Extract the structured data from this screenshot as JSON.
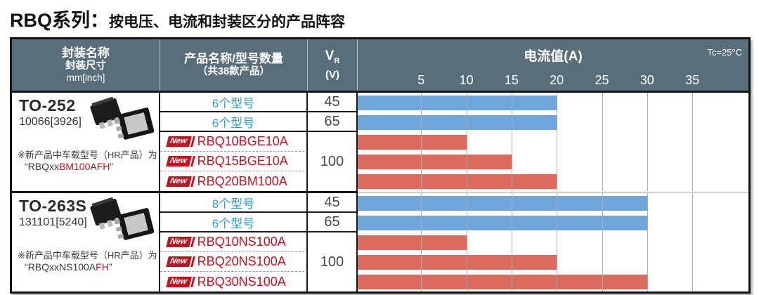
{
  "title": {
    "series": "RBQ系列：",
    "subtitle": "按电压、电流和封装区分的产品阵容"
  },
  "header": {
    "package_col": {
      "line1": "封装名称",
      "line2": "封装尺寸",
      "line3": "mm[inch]"
    },
    "product_col": {
      "line1": "产品名称/型号数量",
      "line2": "（共38款产品）"
    },
    "vr_col": {
      "symbol": "V",
      "sub": "R",
      "unit": "(V)"
    }
  },
  "new_badge_label": "New",
  "chart_data": {
    "type": "bar",
    "orientation": "horizontal",
    "xlabel": "电流值(A)",
    "condition": "Tc=25°C",
    "ticks": [
      5,
      10,
      15,
      20,
      25,
      30,
      35
    ],
    "xlim": [
      0,
      37
    ],
    "grid": true,
    "bar_colors": {
      "existing": "#6FA6DB",
      "new_product": "#DD6A5E"
    },
    "sections": [
      {
        "package": "TO-252",
        "package_size": "10066[3926]",
        "note_line1": "※新产品中车载型号（HR产品）为",
        "note_line2_parts": [
          {
            "text": "“RBQxx",
            "red": false
          },
          {
            "text": "BM100",
            "red": true
          },
          {
            "text": "A",
            "red": false
          },
          {
            "text": "FH",
            "red": true
          },
          {
            "text": "”",
            "red": false
          }
        ],
        "rows": [
          {
            "label": "6个型号",
            "is_new": false,
            "vr": "45",
            "vr_span": 1,
            "current_a": 20
          },
          {
            "label": "6个型号",
            "is_new": false,
            "vr": "65",
            "vr_span": 1,
            "current_a": 20
          },
          {
            "label": "RBQ10BGE10A",
            "is_new": true,
            "vr": "100",
            "vr_span": 3,
            "current_a": 10
          },
          {
            "label": "RBQ15BGE10A",
            "is_new": true,
            "current_a": 15
          },
          {
            "label": "RBQ20BM100A",
            "is_new": true,
            "current_a": 20
          }
        ]
      },
      {
        "package": "TO-263S",
        "package_size": "131101[5240]",
        "note_line1": "※新产品中车载型号（HR产品）为",
        "note_line2_parts": [
          {
            "text": "“RBQxxNS100A",
            "red": false
          },
          {
            "text": "FH",
            "red": true
          },
          {
            "text": "”",
            "red": false
          }
        ],
        "rows": [
          {
            "label": "8个型号",
            "is_new": false,
            "vr": "45",
            "vr_span": 1,
            "current_a": 30
          },
          {
            "label": "6个型号",
            "is_new": false,
            "vr": "65",
            "vr_span": 1,
            "current_a": 30
          },
          {
            "label": "RBQ10NS100A",
            "is_new": true,
            "vr": "100",
            "vr_span": 3,
            "current_a": 10
          },
          {
            "label": "RBQ20NS100A",
            "is_new": true,
            "current_a": 20
          },
          {
            "label": "RBQ30NS100A",
            "is_new": true,
            "current_a": 30
          }
        ]
      }
    ]
  }
}
